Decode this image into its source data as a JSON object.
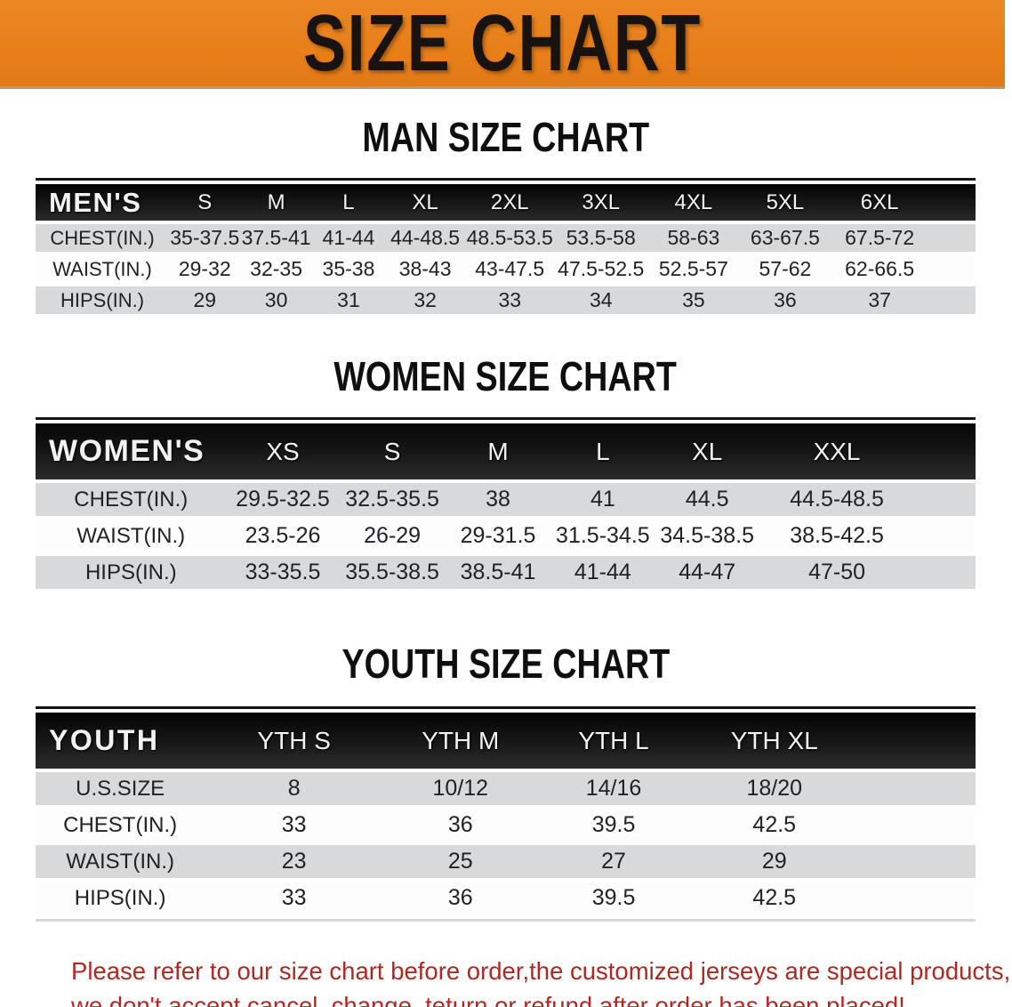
{
  "banner": {
    "title": "SIZE CHART"
  },
  "sections": [
    {
      "heading": "MAN SIZE CHART",
      "table": {
        "label": "MEN'S",
        "columns": [
          "S",
          "M",
          "L",
          "XL",
          "2XL",
          "3XL",
          "4XL",
          "5XL",
          "6XL"
        ],
        "rows": [
          {
            "label": "CHEST(IN.)",
            "values": [
              "35-37.5",
              "37.5-41",
              "41-44",
              "44-48.5",
              "48.5-53.5",
              "53.5-58",
              "58-63",
              "63-67.5",
              "67.5-72"
            ]
          },
          {
            "label": "WAIST(IN.)",
            "values": [
              "29-32",
              "32-35",
              "35-38",
              "38-43",
              "43-47.5",
              "47.5-52.5",
              "52.5-57",
              "57-62",
              "62-66.5"
            ]
          },
          {
            "label": "HIPS(IN.)",
            "values": [
              "29",
              "30",
              "31",
              "32",
              "33",
              "34",
              "35",
              "36",
              "37"
            ]
          }
        ]
      }
    },
    {
      "heading": "WOMEN SIZE CHART",
      "table": {
        "label": "WOMEN'S",
        "columns": [
          "XS",
          "S",
          "M",
          "L",
          "XL",
          "XXL"
        ],
        "rows": [
          {
            "label": "CHEST(IN.)",
            "values": [
              "29.5-32.5",
              "32.5-35.5",
              "38",
              "41",
              "44.5",
              "44.5-48.5"
            ]
          },
          {
            "label": "WAIST(IN.)",
            "values": [
              "23.5-26",
              "26-29",
              "29-31.5",
              "31.5-34.5",
              "34.5-38.5",
              "38.5-42.5"
            ]
          },
          {
            "label": "HIPS(IN.)",
            "values": [
              "33-35.5",
              "35.5-38.5",
              "38.5-41",
              "41-44",
              "44-47",
              "47-50"
            ]
          }
        ]
      }
    },
    {
      "heading": "YOUTH SIZE CHART",
      "table": {
        "label": "YOUTH",
        "columns": [
          "YTH S",
          "YTH M",
          "YTH L",
          "YTH XL"
        ],
        "rows": [
          {
            "label": "U.S.SIZE",
            "values": [
              "8",
              "10/12",
              "14/16",
              "18/20"
            ]
          },
          {
            "label": "CHEST(IN.)",
            "values": [
              "33",
              "36",
              "39.5",
              "42.5"
            ]
          },
          {
            "label": "WAIST(IN.)",
            "values": [
              "23",
              "25",
              "27",
              "29"
            ]
          },
          {
            "label": "HIPS(IN.)",
            "values": [
              "33",
              "36",
              "39.5",
              "42.5"
            ]
          }
        ]
      }
    }
  ],
  "disclaimer": {
    "line1": "Please refer to our size chart before order,the customized jerseys are special products,",
    "line2": "we don't accept cancel, change, teturn or refund after order has been placed!"
  },
  "colors": {
    "banner_orange": "#E77E18",
    "header_black": "#141414",
    "row_gray": "#D8D9DB",
    "disclaimer_red": "#AB2A23"
  }
}
